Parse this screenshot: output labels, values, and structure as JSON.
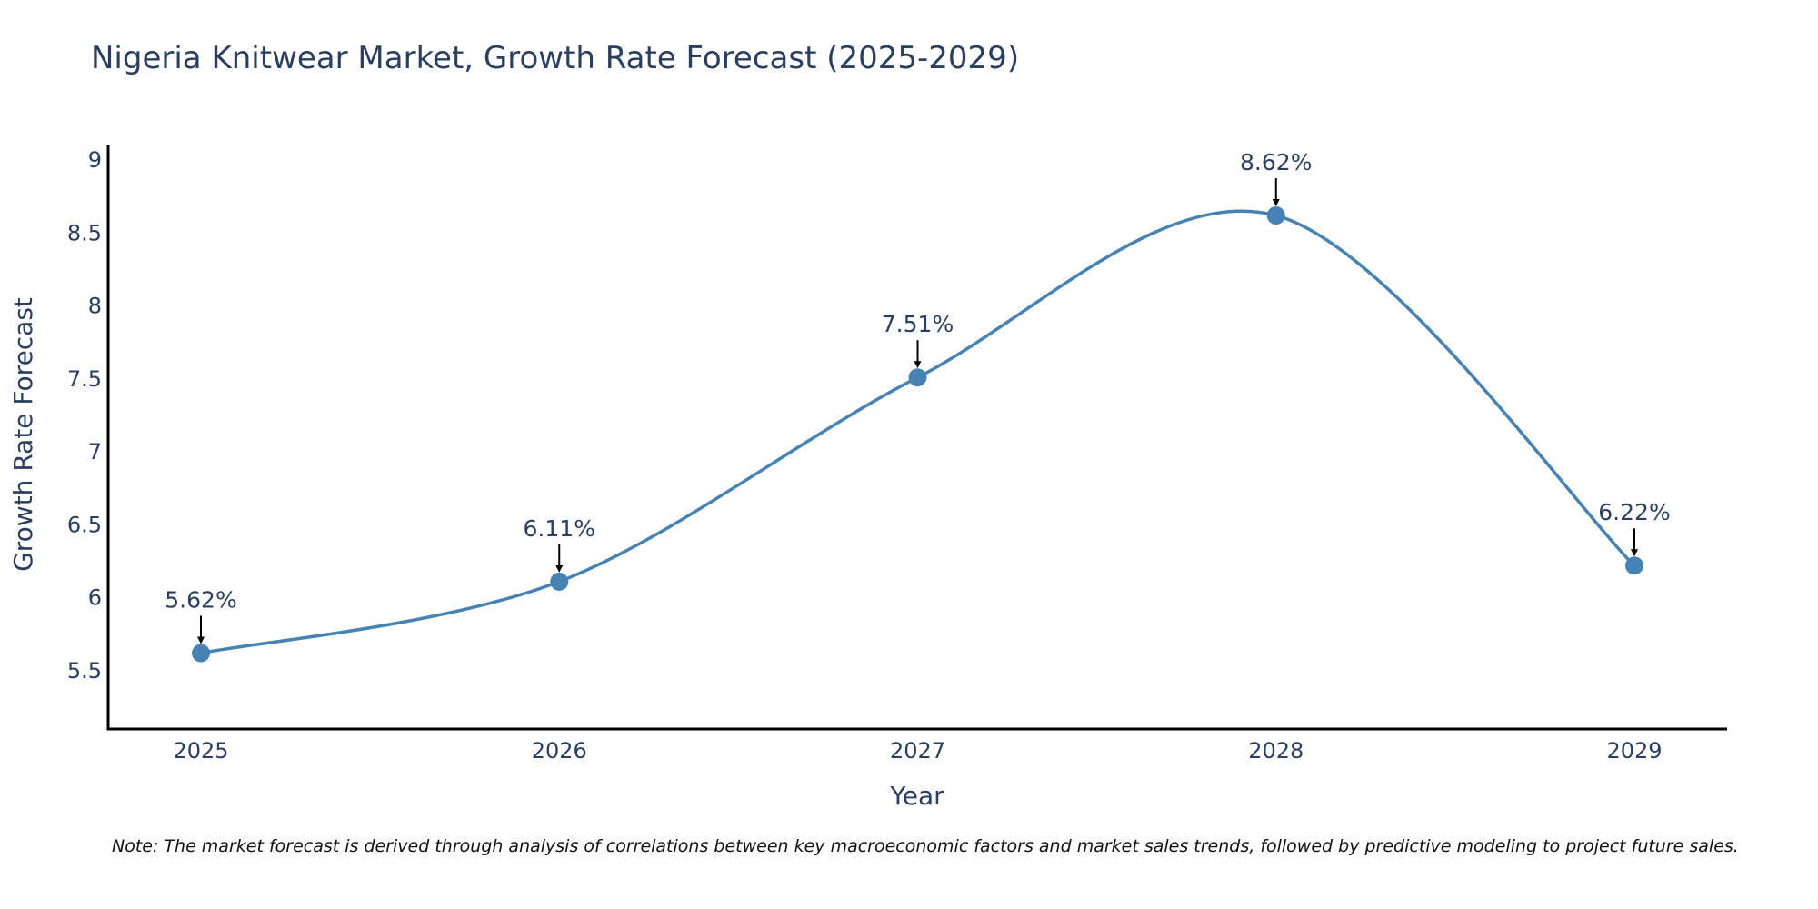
{
  "chart_data": {
    "type": "line",
    "title": "Nigeria Knitwear Market, Growth Rate Forecast (2025-2029)",
    "xlabel": "Year",
    "ylabel": "Growth Rate Forecast",
    "categories": [
      "2025",
      "2026",
      "2027",
      "2028",
      "2029"
    ],
    "series": [
      {
        "name": "Growth Rate Forecast",
        "values": [
          5.62,
          6.11,
          7.51,
          8.62,
          6.22
        ]
      }
    ],
    "data_labels": [
      "5.62%",
      "6.11%",
      "7.51%",
      "8.62%",
      "6.22%"
    ],
    "yticks": [
      5.5,
      6,
      6.5,
      7,
      7.5,
      8,
      8.5,
      9
    ],
    "ytick_labels": [
      "5.5",
      "6",
      "6.5",
      "7",
      "7.5",
      "8",
      "8.5",
      "9"
    ],
    "ylim": [
      5.1,
      9.1
    ],
    "line_color": "#4682b4",
    "annotation_arrow_color": "#000000",
    "grid": false,
    "legend": "none",
    "line_shape": "spline"
  },
  "note": "Note: The market forecast is derived through analysis of correlations between key macroeconomic factors and market sales trends, followed by predictive modeling to project future sales."
}
